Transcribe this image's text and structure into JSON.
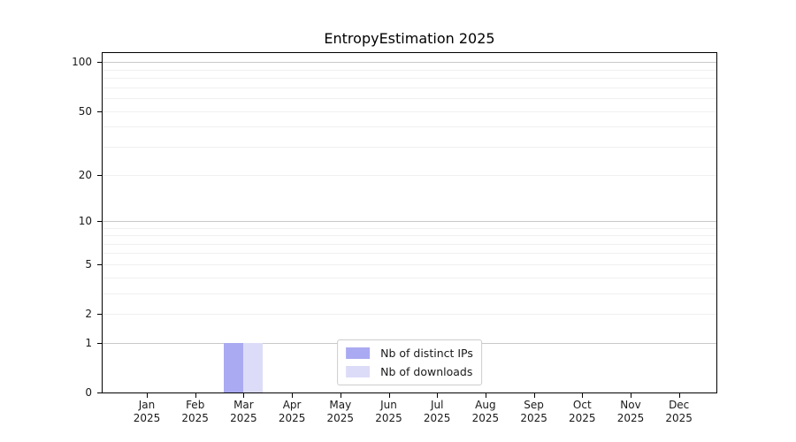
{
  "chart_data": {
    "type": "bar",
    "title": "EntropyEstimation 2025",
    "x": {
      "categories": [
        "Jan",
        "Feb",
        "Mar",
        "Apr",
        "May",
        "Jun",
        "Jul",
        "Aug",
        "Sep",
        "Oct",
        "Nov",
        "Dec"
      ],
      "sub_label": "2025"
    },
    "y": {
      "ticks": [
        0,
        1,
        2,
        5,
        10,
        20,
        50,
        100
      ],
      "scale": "log(value+1)",
      "top_value": 113,
      "major_gridlines": [
        1,
        10,
        100
      ],
      "minor_gridlines": [
        2,
        3,
        4,
        5,
        6,
        7,
        8,
        9,
        20,
        30,
        40,
        50,
        60,
        70,
        80,
        90
      ]
    },
    "series": [
      {
        "name": "Nb of distinct IPs",
        "color": "#aaaaf2",
        "values": [
          0,
          0,
          1,
          0,
          0,
          0,
          0,
          0,
          0,
          0,
          0,
          0
        ]
      },
      {
        "name": "Nb of downloads",
        "color": "#dcdcf8",
        "values": [
          0,
          0,
          1,
          0,
          0,
          0,
          0,
          0,
          0,
          0,
          0,
          0
        ]
      }
    ],
    "legend": {
      "position": "lower center"
    },
    "grid": true
  }
}
